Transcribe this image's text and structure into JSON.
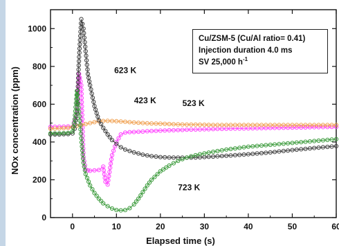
{
  "chart_data": {
    "type": "scatter",
    "xlabel": "Elapsed time (s)",
    "ylabel": "NOx concentration (ppm)",
    "xlim": [
      -5,
      60
    ],
    "ylim": [
      0,
      1100
    ],
    "xticks": [
      0,
      10,
      20,
      30,
      40,
      50,
      60
    ],
    "yticks": [
      0,
      200,
      400,
      600,
      800,
      1000
    ],
    "xtick_labels": [
      "0",
      "10",
      "20",
      "30",
      "40",
      "50",
      "60"
    ],
    "ytick_labels": [
      "0",
      "200",
      "400",
      "600",
      "800",
      "1000"
    ],
    "grid": false,
    "annotation_box": {
      "line1": "Cu/ZSM-5 (Cu/Al ratio= 0.41)",
      "line2": "Injection duration 4.0 ms",
      "line3_prefix": "SV 25,000 h",
      "line3_sup": "-1"
    },
    "series": [
      {
        "name": "423 K",
        "color": "#ff44ff",
        "marker": "circle",
        "x": [
          -5,
          -3,
          -1,
          0,
          1,
          1.5,
          2,
          2.5,
          3,
          3.5,
          4,
          5,
          6,
          7,
          7.5,
          8,
          9,
          10,
          11,
          12,
          13,
          14,
          15,
          16,
          17,
          18,
          20,
          22,
          24,
          26,
          28,
          30,
          35,
          40,
          45,
          50,
          55,
          60
        ],
        "y": [
          480,
          481,
          482,
          480,
          550,
          760,
          700,
          320,
          255,
          250,
          248,
          250,
          252,
          270,
          190,
          175,
          330,
          400,
          440,
          450,
          452,
          453,
          454,
          455,
          457,
          458,
          460,
          462,
          463,
          465,
          466,
          467,
          470,
          472,
          474,
          476,
          478,
          480
        ]
      },
      {
        "name": "523 K",
        "color": "#f0a050",
        "marker": "circle",
        "x": [
          -5,
          -3,
          -1,
          0,
          1,
          2,
          3,
          4,
          5,
          6,
          8,
          10,
          12,
          14,
          16,
          18,
          20,
          22,
          24,
          26,
          28,
          30,
          32,
          35,
          40,
          45,
          50,
          55,
          60
        ],
        "y": [
          470,
          472,
          475,
          478,
          485,
          490,
          495,
          500,
          505,
          510,
          512,
          510,
          507,
          503,
          500,
          498,
          497,
          495,
          493,
          492,
          492,
          491,
          490,
          490,
          490,
          490,
          490,
          490,
          490
        ]
      },
      {
        "name": "623 K",
        "color": "#404040",
        "marker": "circle",
        "x": [
          -5,
          -3,
          -1,
          0,
          0.5,
          1,
          1.5,
          2,
          2.5,
          3,
          3.5,
          4,
          5,
          6,
          7,
          8,
          9,
          10,
          11,
          12,
          14,
          16,
          18,
          20,
          22,
          25,
          28,
          30,
          35,
          40,
          45,
          50,
          55,
          60
        ],
        "y": [
          440,
          440,
          442,
          445,
          470,
          560,
          850,
          1050,
          1000,
          880,
          760,
          700,
          590,
          515,
          475,
          440,
          410,
          390,
          372,
          360,
          345,
          333,
          325,
          320,
          318,
          317,
          318,
          320,
          327,
          335,
          345,
          357,
          368,
          378
        ]
      },
      {
        "name": "723 K",
        "color": "#3a9a3a",
        "marker": "circle",
        "x": [
          -5,
          -3,
          -1,
          0,
          0.5,
          1,
          1.5,
          2,
          2.5,
          3,
          4,
          5,
          6,
          7,
          8,
          9,
          10,
          11,
          12,
          13,
          14,
          15,
          16,
          17,
          18,
          20,
          22,
          24,
          26,
          28,
          30,
          35,
          40,
          45,
          50,
          55,
          60
        ],
        "y": [
          445,
          446,
          448,
          455,
          520,
          670,
          560,
          420,
          290,
          230,
          170,
          130,
          100,
          75,
          60,
          48,
          40,
          38,
          40,
          50,
          70,
          100,
          135,
          170,
          200,
          245,
          275,
          300,
          318,
          330,
          340,
          360,
          375,
          385,
          395,
          405,
          415
        ]
      }
    ],
    "curve_labels": [
      {
        "text": "623 K",
        "x": 9.5,
        "y": 765
      },
      {
        "text": "423 K",
        "x": 14,
        "y": 605
      },
      {
        "text": "523 K",
        "x": 25,
        "y": 590
      },
      {
        "text": "723 K",
        "x": 24,
        "y": 145
      }
    ]
  }
}
